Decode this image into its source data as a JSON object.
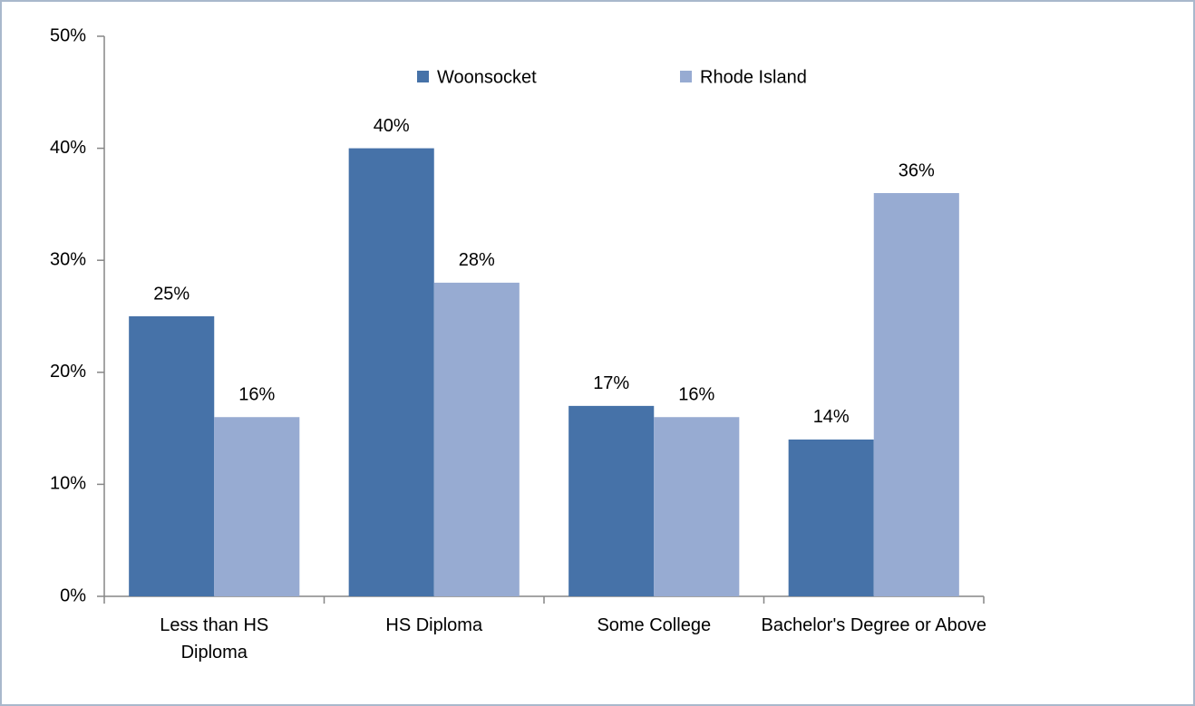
{
  "chart_data": {
    "type": "bar",
    "categories": [
      "Less than HS Diploma",
      "HS Diploma",
      "Some College",
      "Bachelor's Degree or Above"
    ],
    "series": [
      {
        "name": "Woonsocket",
        "color": "#4672a8",
        "values": [
          25,
          40,
          17,
          14
        ],
        "value_labels": [
          "25%",
          "40%",
          "17%",
          "14%"
        ]
      },
      {
        "name": "Rhode Island",
        "color": "#97abd2",
        "values": [
          16,
          28,
          16,
          36
        ],
        "value_labels": [
          "16%",
          "28%",
          "16%",
          "36%"
        ]
      }
    ],
    "ylim": [
      0,
      50
    ],
    "yticks": [
      {
        "value": 0,
        "label": "0%"
      },
      {
        "value": 10,
        "label": "10%"
      },
      {
        "value": 20,
        "label": "20%"
      },
      {
        "value": 30,
        "label": "30%"
      },
      {
        "value": 40,
        "label": "40%"
      },
      {
        "value": 50,
        "label": "50%"
      }
    ],
    "grid": false,
    "legend": "top"
  }
}
